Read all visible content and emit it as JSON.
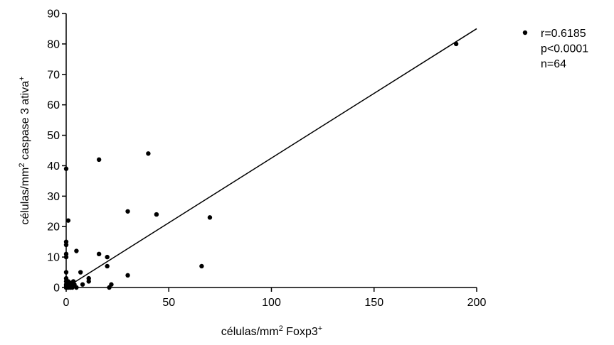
{
  "chart_data": {
    "type": "scatter",
    "xlabel": {
      "main": "células/mm",
      "sup1": "2",
      "mid": " Foxp3",
      "sup2": "+"
    },
    "ylabel": {
      "main": "células/mm",
      "sup1": "2",
      "mid": " caspase 3 ativa",
      "sup2": "+"
    },
    "xlim": [
      0,
      200
    ],
    "ylim": [
      0,
      90
    ],
    "xticks": [
      0,
      50,
      100,
      150,
      200
    ],
    "yticks": [
      0,
      10,
      20,
      30,
      40,
      50,
      60,
      70,
      80,
      90
    ],
    "legend": {
      "position": "top-right",
      "lines": [
        "r=0.6185",
        "p<0.0001",
        "n=64"
      ]
    },
    "regression_line": {
      "x": [
        0,
        200
      ],
      "y": [
        0,
        85
      ]
    },
    "series": [
      {
        "points": [
          [
            0,
            39
          ],
          [
            0,
            15
          ],
          [
            0,
            14
          ],
          [
            0,
            11
          ],
          [
            0,
            10
          ],
          [
            0,
            5
          ],
          [
            0,
            3
          ],
          [
            0,
            2
          ],
          [
            0,
            1
          ],
          [
            0,
            0.5
          ],
          [
            0,
            0
          ],
          [
            0,
            0
          ],
          [
            0,
            0
          ],
          [
            0,
            0
          ],
          [
            0.5,
            0
          ],
          [
            0.5,
            1
          ],
          [
            1,
            22
          ],
          [
            1,
            2
          ],
          [
            1,
            0
          ],
          [
            1.5,
            0.5
          ],
          [
            2,
            1.5
          ],
          [
            2,
            0.5
          ],
          [
            2,
            0
          ],
          [
            2.5,
            1
          ],
          [
            3,
            1.5
          ],
          [
            3,
            0
          ],
          [
            3.5,
            2
          ],
          [
            4,
            1
          ],
          [
            5,
            12
          ],
          [
            5,
            0
          ],
          [
            7,
            5
          ],
          [
            8,
            1
          ],
          [
            11,
            3
          ],
          [
            11,
            2
          ],
          [
            16,
            42
          ],
          [
            16,
            11
          ],
          [
            20,
            10
          ],
          [
            20,
            7
          ],
          [
            21,
            0
          ],
          [
            22,
            1
          ],
          [
            30,
            25
          ],
          [
            30,
            4
          ],
          [
            40,
            44
          ],
          [
            44,
            24
          ],
          [
            66,
            7
          ],
          [
            70,
            23
          ],
          [
            190,
            80
          ]
        ]
      }
    ]
  }
}
